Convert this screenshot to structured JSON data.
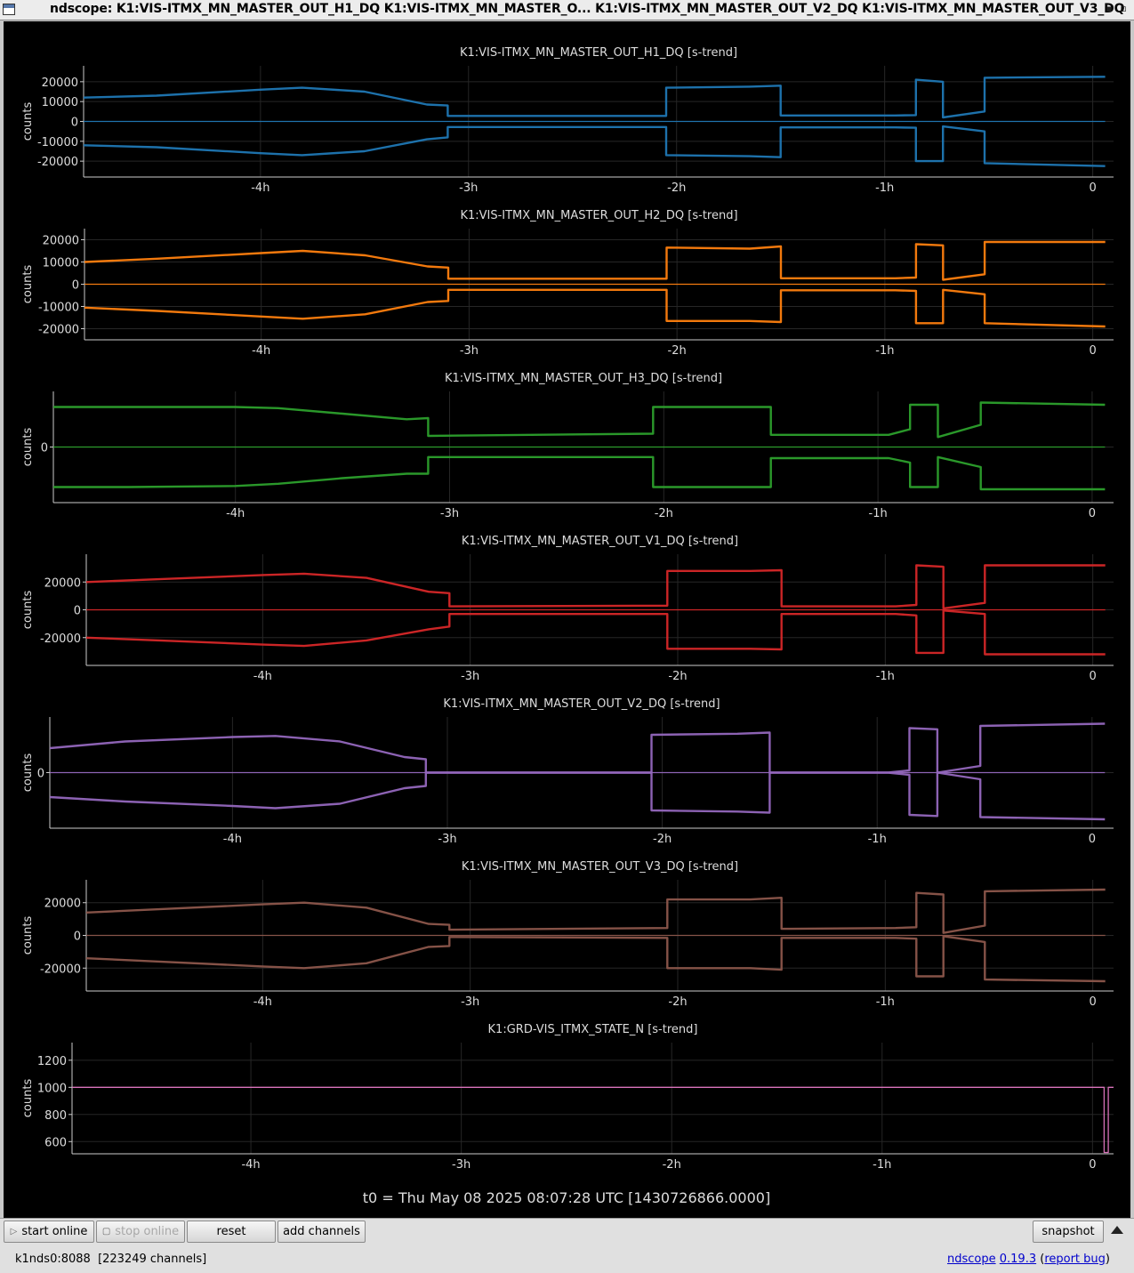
{
  "window": {
    "title": "ndscope: K1:VIS-ITMX_MN_MASTER_OUT_H1_DQ K1:VIS-ITMX_MN_MASTER_O... K1:VIS-ITMX_MN_MASTER_OUT_V2_DQ K1:VIS-ITMX_MN_MASTER_OUT_V3_DQ",
    "minimize_icon": "minimize-icon",
    "maximize_icon": "maximize-icon"
  },
  "colors": {
    "background": "#000000",
    "text": "#dddddd",
    "H1": "#1f77b4",
    "H2": "#ff7f0e",
    "H3": "#2ca02c",
    "V1": "#d62728",
    "V2": "#9467bd",
    "V3": "#8c564b",
    "STATE": "#e377c2"
  },
  "x_ticks": [
    "-4h",
    "-3h",
    "-2h",
    "-1h",
    "0"
  ],
  "t0_label": "t0 = Thu May 08 2025 08:07:28 UTC [1430726866.0000]",
  "chart_data": [
    {
      "type": "line",
      "title": "K1:VIS-ITMX_MN_MASTER_OUT_H1_DQ [s-trend]",
      "ylabel": "counts",
      "y_ticks": [
        "20000",
        "10000",
        "0",
        "-10000",
        "-20000"
      ],
      "xlim_hours": [
        -4.85,
        0.1
      ],
      "ylim": [
        -28000,
        28000
      ],
      "x_hours": [
        -4.85,
        -4.5,
        -4.0,
        -3.8,
        -3.5,
        -3.2,
        -3.1,
        -3.1,
        -2.05,
        -2.05,
        -1.65,
        -1.5,
        -1.5,
        -0.95,
        -0.85,
        -0.85,
        -0.72,
        -0.72,
        -0.52,
        -0.52,
        0.06
      ],
      "series": [
        {
          "values": [
            12000,
            13000,
            16000,
            17000,
            15000,
            8500,
            8000,
            2800,
            2800,
            17000,
            17500,
            18000,
            3000,
            3000,
            3200,
            21000,
            20000,
            2000,
            5000,
            22000,
            22500
          ]
        },
        {
          "values": [
            -12000,
            -13000,
            -16000,
            -17000,
            -15000,
            -9000,
            -8000,
            -2800,
            -2800,
            -17000,
            -17500,
            -18000,
            -3000,
            -3000,
            -3200,
            -20000,
            -20000,
            -2500,
            -5000,
            -21000,
            -22500
          ]
        },
        {
          "values": [
            0,
            0,
            0,
            0,
            0,
            0,
            0,
            0,
            0,
            0,
            0,
            0,
            0,
            0,
            0,
            0,
            0,
            0,
            0,
            0,
            0
          ]
        }
      ]
    },
    {
      "type": "line",
      "title": "K1:VIS-ITMX_MN_MASTER_OUT_H2_DQ [s-trend]",
      "ylabel": "counts",
      "y_ticks": [
        "20000",
        "10000",
        "0",
        "-10000",
        "-20000"
      ],
      "xlim_hours": [
        -4.85,
        0.1
      ],
      "ylim": [
        -25000,
        25000
      ],
      "x_hours": [
        -4.85,
        -4.5,
        -4.0,
        -3.8,
        -3.5,
        -3.2,
        -3.1,
        -3.1,
        -2.05,
        -2.05,
        -1.65,
        -1.5,
        -1.5,
        -0.95,
        -0.85,
        -0.85,
        -0.72,
        -0.72,
        -0.52,
        -0.52,
        0.06
      ],
      "series": [
        {
          "values": [
            10000,
            11500,
            14000,
            15000,
            13000,
            8000,
            7500,
            2500,
            2500,
            16500,
            16000,
            17000,
            2700,
            2700,
            3000,
            18000,
            17500,
            2000,
            4500,
            19000,
            19000
          ]
        },
        {
          "values": [
            -10500,
            -12000,
            -14500,
            -15500,
            -13500,
            -8000,
            -7500,
            -2500,
            -2500,
            -16500,
            -16500,
            -17000,
            -2700,
            -2700,
            -3000,
            -17500,
            -17500,
            -2500,
            -4500,
            -17500,
            -19000
          ]
        },
        {
          "values": [
            0,
            0,
            0,
            0,
            0,
            0,
            0,
            0,
            0,
            0,
            0,
            0,
            0,
            0,
            0,
            0,
            0,
            0,
            0,
            0,
            0
          ]
        }
      ]
    },
    {
      "type": "line",
      "title": "K1:VIS-ITMX_MN_MASTER_OUT_H3_DQ [s-trend]",
      "ylabel": "counts",
      "y_ticks": [
        "0"
      ],
      "xlim_hours": [
        -4.85,
        0.1
      ],
      "ylim": [
        -25000,
        25000
      ],
      "x_hours": [
        -4.85,
        -4.5,
        -4.0,
        -3.8,
        -3.5,
        -3.2,
        -3.1,
        -3.1,
        -2.05,
        -2.05,
        -1.65,
        -1.5,
        -1.5,
        -0.95,
        -0.85,
        -0.85,
        -0.72,
        -0.72,
        -0.52,
        -0.52,
        0.06
      ],
      "series": [
        {
          "values": [
            18000,
            18000,
            18000,
            17500,
            15000,
            12500,
            13000,
            5000,
            6000,
            18000,
            18000,
            18000,
            5500,
            5500,
            8000,
            19000,
            19000,
            4500,
            10000,
            20000,
            19000
          ]
        },
        {
          "values": [
            -18000,
            -18000,
            -17500,
            -16500,
            -14000,
            -12000,
            -12000,
            -4500,
            -4500,
            -18000,
            -18000,
            -18000,
            -5000,
            -5000,
            -7000,
            -18000,
            -18000,
            -4500,
            -9000,
            -19000,
            -19000
          ]
        },
        {
          "values": [
            0,
            0,
            0,
            0,
            0,
            0,
            0,
            0,
            0,
            0,
            0,
            0,
            0,
            0,
            0,
            0,
            0,
            0,
            0,
            0,
            0
          ]
        }
      ]
    },
    {
      "type": "line",
      "title": "K1:VIS-ITMX_MN_MASTER_OUT_V1_DQ [s-trend]",
      "ylabel": "counts",
      "y_ticks": [
        "20000",
        "0",
        "-20000"
      ],
      "xlim_hours": [
        -4.85,
        0.1
      ],
      "ylim": [
        -40000,
        40000
      ],
      "x_hours": [
        -4.85,
        -4.5,
        -4.0,
        -3.8,
        -3.5,
        -3.2,
        -3.1,
        -3.1,
        -2.05,
        -2.05,
        -1.65,
        -1.5,
        -1.5,
        -0.95,
        -0.85,
        -0.85,
        -0.72,
        -0.72,
        -0.52,
        -0.52,
        0.06
      ],
      "series": [
        {
          "values": [
            20000,
            22000,
            25000,
            26000,
            23000,
            13000,
            12000,
            2500,
            3000,
            28000,
            28000,
            28500,
            2500,
            2500,
            3500,
            32000,
            31000,
            1000,
            5000,
            32000,
            32000
          ]
        },
        {
          "values": [
            -20000,
            -22000,
            -25000,
            -26000,
            -22000,
            -14000,
            -12000,
            -3000,
            -3000,
            -28000,
            -28000,
            -28500,
            -3000,
            -3000,
            -4000,
            -31000,
            -31000,
            -500,
            -3000,
            -32000,
            -32000
          ]
        },
        {
          "values": [
            0,
            0,
            0,
            0,
            0,
            0,
            0,
            0,
            0,
            0,
            0,
            0,
            0,
            0,
            0,
            0,
            0,
            0,
            0,
            0,
            0
          ]
        }
      ]
    },
    {
      "type": "line",
      "title": "K1:VIS-ITMX_MN_MASTER_OUT_V2_DQ [s-trend]",
      "ylabel": "counts",
      "y_ticks": [
        "0"
      ],
      "xlim_hours": [
        -4.85,
        0.1
      ],
      "ylim": [
        -25000,
        25000
      ],
      "x_hours": [
        -4.85,
        -4.5,
        -4.0,
        -3.8,
        -3.5,
        -3.2,
        -3.1,
        -3.1,
        -2.05,
        -2.05,
        -1.65,
        -1.5,
        -1.5,
        -0.95,
        -0.85,
        -0.85,
        -0.72,
        -0.72,
        -0.52,
        -0.52,
        0.06
      ],
      "series": [
        {
          "values": [
            11000,
            14000,
            16000,
            16500,
            14000,
            7000,
            6000,
            0,
            0,
            17000,
            17500,
            18000,
            0,
            0,
            1000,
            20000,
            19500,
            0,
            3000,
            21000,
            22000
          ]
        },
        {
          "values": [
            -11000,
            -13000,
            -15000,
            -16000,
            -14000,
            -7000,
            -6000,
            0,
            0,
            -17000,
            -17500,
            -18000,
            0,
            0,
            -1000,
            -19000,
            -19500,
            0,
            -3000,
            -20000,
            -21000
          ]
        },
        {
          "values": [
            0,
            0,
            0,
            0,
            0,
            0,
            0,
            0,
            0,
            0,
            0,
            0,
            0,
            0,
            0,
            0,
            0,
            0,
            0,
            0,
            0
          ]
        }
      ]
    },
    {
      "type": "line",
      "title": "K1:VIS-ITMX_MN_MASTER_OUT_V3_DQ [s-trend]",
      "ylabel": "counts",
      "y_ticks": [
        "20000",
        "0",
        "-20000"
      ],
      "xlim_hours": [
        -4.85,
        0.1
      ],
      "ylim": [
        -34000,
        34000
      ],
      "x_hours": [
        -4.85,
        -4.5,
        -4.0,
        -3.8,
        -3.5,
        -3.2,
        -3.1,
        -3.1,
        -2.05,
        -2.05,
        -1.65,
        -1.5,
        -1.5,
        -0.95,
        -0.85,
        -0.85,
        -0.72,
        -0.72,
        -0.52,
        -0.52,
        0.06
      ],
      "series": [
        {
          "values": [
            14000,
            16000,
            19000,
            20000,
            17000,
            7000,
            6500,
            3500,
            4500,
            22000,
            22000,
            23000,
            4000,
            4500,
            5000,
            26000,
            25000,
            1500,
            6000,
            27000,
            28000
          ]
        },
        {
          "values": [
            -14000,
            -16000,
            -19000,
            -20000,
            -17000,
            -7000,
            -6500,
            -1000,
            -1500,
            -20000,
            -20000,
            -21000,
            -1500,
            -1500,
            -2000,
            -25000,
            -25000,
            -500,
            -4000,
            -27000,
            -28000
          ]
        },
        {
          "values": [
            0,
            0,
            0,
            0,
            0,
            0,
            0,
            0,
            0,
            0,
            0,
            0,
            0,
            0,
            0,
            0,
            0,
            0,
            0,
            0,
            0
          ]
        }
      ]
    },
    {
      "type": "line",
      "title": "K1:GRD-VIS_ITMX_STATE_N [s-trend]",
      "ylabel": "counts",
      "y_ticks": [
        "1200",
        "1000",
        "800",
        "600"
      ],
      "xlim_hours": [
        -4.85,
        0.1
      ],
      "ylim": [
        510,
        1330
      ],
      "x_hours": [
        -4.85,
        0.055,
        0.055,
        0.075,
        0.075,
        0.1
      ],
      "series": [
        {
          "values": [
            1000,
            1000,
            520,
            520,
            1000,
            1000
          ]
        }
      ]
    }
  ],
  "toolbar": {
    "start_online": "start online",
    "stop_online": "stop online",
    "reset": "reset",
    "add_channels": "add channels",
    "snapshot": "snapshot",
    "start_icon": "play-icon",
    "stop_icon": "stop-icon",
    "expand_icon": "up-arrow-icon"
  },
  "status": {
    "server": "k1nds0:8088  [223249 channels]",
    "app_name": "ndscope",
    "version": "0.19.3",
    "open_paren": "(",
    "report_bug": "report bug",
    "close_paren": ")"
  }
}
